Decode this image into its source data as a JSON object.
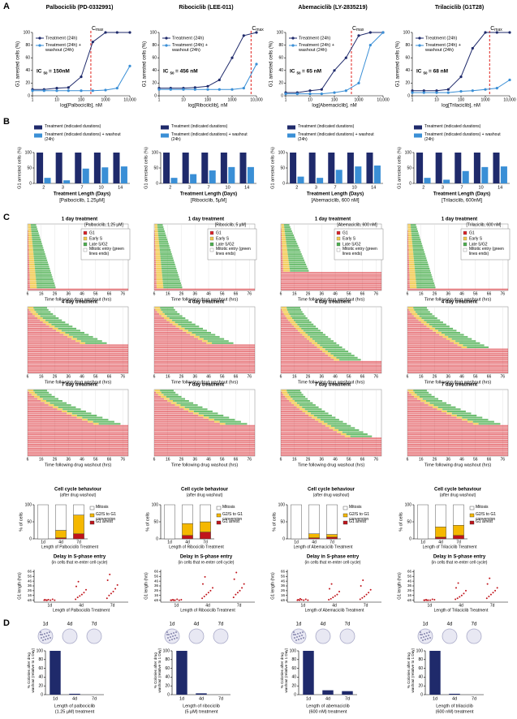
{
  "figure": {
    "shared": {
      "panel_labels": [
        "A",
        "B",
        "C",
        "D"
      ],
      "dose": {
        "x": [
          1,
          3,
          10,
          30,
          100,
          300,
          1000,
          3000,
          10000
        ],
        "xlim": [
          1,
          10000
        ],
        "xticks": [
          1,
          10,
          100,
          1000,
          {
            "value": 10000,
            "label": "10,000"
          }
        ],
        "ylim": [
          0,
          100
        ],
        "yticks": [
          0,
          20,
          40,
          60,
          80,
          100
        ],
        "y_label": "G1 arrested cells (%)",
        "series": [
          {
            "name": "Treatment (24h)",
            "color": "#1f2a6b"
          },
          {
            "name": "Treatment (24h) + washout (24h)",
            "color": "#3a8fd6"
          }
        ],
        "ic50_prefix": "IC",
        "ic50_sub": "50",
        "cmax_main": "C",
        "cmax_sub": "max",
        "cmax_color": "#e0201b"
      },
      "bars": {
        "categories": [
          "2",
          "3",
          "7",
          "10",
          "14"
        ],
        "ylim": [
          0,
          100
        ],
        "yticks": [
          0,
          50,
          100
        ],
        "y_label": "G1 arrested cells (%)",
        "x_label": "Treatment Length (Days)",
        "series": [
          {
            "name": "Treatment (indicated durations)",
            "color": "#1f2a6b"
          },
          {
            "name": "Treatment (indicated durations) + washout (24h)",
            "color": "#3a8fd6"
          }
        ]
      },
      "timeline": {
        "titles": [
          "1 day treatment",
          "4 day treatment",
          "7 day treatment"
        ],
        "x_label": "Time following drug washout (hrs)",
        "xlim": [
          6,
          80
        ],
        "xticks": [
          6,
          16,
          26,
          36,
          46,
          56,
          66,
          76
        ],
        "legend": [
          {
            "name": "G1",
            "color": "#d9232a"
          },
          {
            "name": "Early S",
            "color": "#f2c94c"
          },
          {
            "name": "Late S/G2",
            "color": "#4caf50"
          },
          {
            "name": "Mitotic entry (green lines ends)",
            "color": "#ffffff"
          }
        ]
      },
      "cc": {
        "title": "Cell cycle behaviour",
        "subtitle": "(after drug washout)",
        "y_label": "% of cells",
        "categories": [
          "1d",
          "4d",
          "7d"
        ],
        "ylim": [
          0,
          100
        ],
        "yticks": [
          0,
          50,
          100
        ],
        "series": [
          {
            "name": "Mitosis",
            "color": "#ffffff"
          },
          {
            "name": "G2/S to G1 conversion",
            "color": "#f5b800"
          },
          {
            "name": "G1 arrest",
            "color": "#c0141b"
          }
        ]
      },
      "delay": {
        "title": "Delay in S-phase entry",
        "subtitle": "(in cells that re-enter cell cycle)",
        "y_label": "G1 length (hrs)",
        "ylim": [
          2,
          70
        ],
        "yticks": [
          {
            "value": 6,
            "label": "≤6"
          },
          16,
          26,
          36,
          46,
          56,
          66
        ],
        "color": "#c0141b"
      },
      "colonies": {
        "y_label": "% Colonies after drug washout (relative to 1 Day)",
        "ylim": [
          0,
          100
        ],
        "yticks": [
          0,
          20,
          40,
          60,
          80,
          100
        ],
        "color": "#1f2a6b"
      }
    },
    "columns": [
      {
        "title": "Palbociclib (PD-0332991)",
        "dose": {
          "x_label": "log[Palbociclib], nM",
          "ic50_value": "= 150nM",
          "cmax_x": 250,
          "values": [
            [
              10,
              10,
              12,
              13,
              30,
              85,
              100,
              100,
              100
            ],
            [
              8,
              8,
              8,
              8,
              8,
              8,
              9,
              12,
              47
            ]
          ]
        },
        "bars": {
          "subtitle": "[Palbociclib, 1.25µM]",
          "values": [
            [
              100,
              100,
              100,
              100,
              100
            ],
            [
              18,
              10,
              48,
              52,
              55
            ]
          ]
        },
        "timeline_subtitle": "[Palbociclib, 1.25 µM]",
        "cc": {
          "x_label": "Length of Palbociclib Treatment",
          "values": [
            [
              100,
              75,
              30
            ],
            [
              0,
              22,
              55
            ],
            [
              0,
              3,
              15
            ]
          ]
        },
        "delay": {
          "x_label": "Length of Palbociclib Treatment",
          "values": [
            [
              6,
              6,
              7,
              6,
              8,
              6,
              7,
              6
            ],
            [
              8,
              12,
              15,
              18,
              22,
              28,
              35,
              45
            ],
            [
              10,
              16,
              20,
              24,
              30,
              38,
              48,
              60
            ]
          ]
        },
        "colonies": {
          "x_label": [
            "Length of palbociclib",
            "(1.25 µM) treatment"
          ],
          "values": [
            100,
            2,
            0
          ]
        }
      },
      {
        "title": "Ribociclib (LEE-011)",
        "dose": {
          "x_label": "log[Ribociclib], nM",
          "ic50_value": "= 456 nM",
          "cmax_x": 6000,
          "values": [
            [
              12,
              12,
              12,
              13,
              15,
              25,
              60,
              95,
              100
            ],
            [
              10,
              10,
              10,
              10,
              10,
              10,
              10,
              12,
              50
            ]
          ]
        },
        "bars": {
          "subtitle": "[Ribociclib, 5µM]",
          "values": [
            [
              100,
              100,
              100,
              100,
              100
            ],
            [
              18,
              30,
              42,
              53,
              53
            ]
          ]
        },
        "timeline_subtitle": "[Ribociclib, 5 µM]",
        "cc": {
          "x_label": "Length of Ribociclib Treatment",
          "values": [
            [
              100,
              55,
              50
            ],
            [
              0,
              35,
              30
            ],
            [
              0,
              10,
              20
            ]
          ]
        },
        "delay": {
          "x_label": "Length of Ribociclib Treatment",
          "values": [
            [
              6,
              7,
              6,
              8,
              6,
              7,
              6,
              6
            ],
            [
              10,
              14,
              18,
              22,
              26,
              32,
              40,
              55
            ],
            [
              12,
              18,
              22,
              26,
              32,
              40,
              50,
              64
            ]
          ]
        },
        "colonies": {
          "x_label": [
            "Length of ribociclib",
            "(5 µM) treatment"
          ],
          "values": [
            100,
            3,
            0
          ]
        }
      },
      {
        "title": "Abemaciclib (LY-2835219)",
        "dose": {
          "x_label": "log[Abemaciclib], nM",
          "ic50_value": "= 65 nM",
          "cmax_x": 500,
          "values": [
            [
              5,
              5,
              8,
              10,
              40,
              60,
              95,
              100,
              100
            ],
            [
              3,
              3,
              3,
              3,
              5,
              8,
              20,
              80,
              100
            ]
          ]
        },
        "bars": {
          "subtitle": "[Abemaciclib, 600 nM]",
          "values": [
            [
              100,
              100,
              100,
              100,
              100
            ],
            [
              22,
              18,
              44,
              55,
              58
            ]
          ]
        },
        "timeline_subtitle": "[Abemaciclib, 600 nM]",
        "cc": {
          "x_label": "Length of Abemaciclib Treatment",
          "values": [
            [
              100,
              85,
              87
            ],
            [
              0,
              12,
              8
            ],
            [
              0,
              3,
              5
            ]
          ]
        },
        "delay": {
          "x_label": "Length of Abemaciclib Treatment",
          "values": [
            [
              6,
              6,
              7,
              6,
              8,
              6,
              7,
              9
            ],
            [
              7,
              9,
              12,
              15,
              18,
              24,
              30,
              40
            ],
            [
              8,
              11,
              14,
              18,
              22,
              28,
              36,
              48
            ]
          ]
        },
        "colonies": {
          "x_label": [
            "Length of abemaciclib",
            "(600 nM) treatment"
          ],
          "values": [
            100,
            10,
            8
          ]
        }
      },
      {
        "title": "Trilaciclib (G1T28)",
        "dose": {
          "x_label": "log[Trilaciclib], nM",
          "ic50_value": "= 68 nM",
          "cmax_x": 1500,
          "values": [
            [
              8,
              8,
              8,
              10,
              30,
              75,
              100,
              100,
              100
            ],
            [
              5,
              5,
              5,
              5,
              7,
              8,
              10,
              12,
              25
            ]
          ]
        },
        "bars": {
          "subtitle": "[Trilaciclib, 600nM]",
          "values": [
            [
              100,
              100,
              100,
              100,
              100
            ],
            [
              18,
              12,
              40,
              53,
              55
            ]
          ]
        },
        "timeline_subtitle": "[Trilaciclib, 600 nM]",
        "cc": {
          "x_label": "Length of Trilaciclib Treatment",
          "values": [
            [
              100,
              65,
              60
            ],
            [
              0,
              30,
              30
            ],
            [
              0,
              5,
              10
            ]
          ]
        },
        "delay": {
          "x_label": "Length of Trilaciclib Treatment",
          "values": [
            [
              6,
              7,
              6,
              6,
              8,
              7,
              6,
              6
            ],
            [
              8,
              10,
              13,
              16,
              20,
              26,
              32,
              42
            ],
            [
              10,
              14,
              18,
              22,
              26,
              32,
              40,
              52
            ]
          ]
        },
        "colonies": {
          "x_label": [
            "Length of trilaciclib",
            "(600 nM) treatment"
          ],
          "values": [
            100,
            2,
            0
          ]
        }
      }
    ]
  }
}
